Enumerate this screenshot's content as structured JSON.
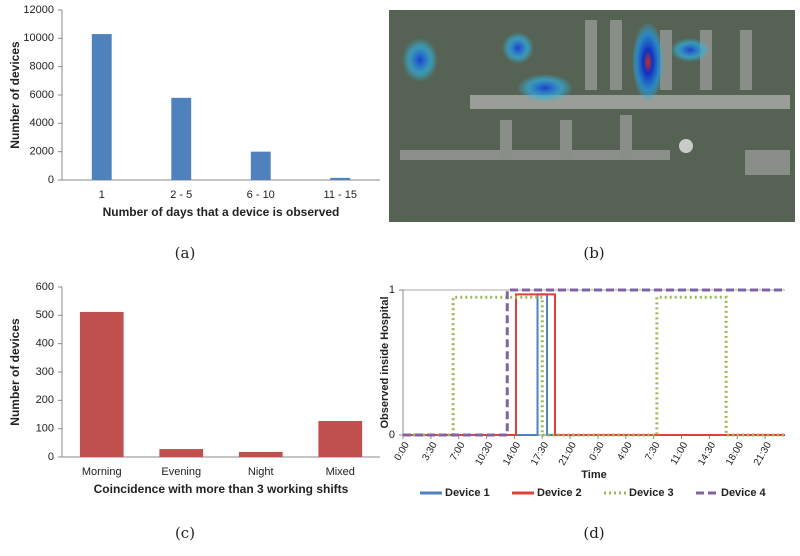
{
  "captions": [
    "(a)",
    "(b)",
    "(c)",
    "(d)"
  ],
  "chart_data": [
    {
      "type": "bar",
      "categories": [
        "1",
        "2 - 5",
        "6 - 10",
        "11 - 15"
      ],
      "values": [
        10300,
        5800,
        2000,
        150
      ],
      "color": "#4f81bd",
      "ylim": [
        0,
        12000
      ],
      "yticks": [
        0,
        2000,
        4000,
        6000,
        8000,
        10000,
        12000
      ],
      "y_label": "Number of devices",
      "x_label": "Number of days that a device is observed",
      "grid": false
    },
    {
      "type": "bar",
      "categories": [
        "Morning",
        "Evening",
        "Night",
        "Mixed"
      ],
      "values": [
        512,
        28,
        18,
        127
      ],
      "color": "#c0504d",
      "ylim": [
        0,
        600
      ],
      "yticks": [
        0,
        100,
        200,
        300,
        400,
        500,
        600
      ],
      "y_label": "Number of devices",
      "x_label": "Coincidence with more than 3 working shifts",
      "grid": false
    },
    {
      "type": "line",
      "x_label": "Time",
      "y_label": "Observed inside Hospital",
      "xlim": [
        0,
        48
      ],
      "ylim": [
        0,
        1
      ],
      "yticks": [
        0,
        1
      ],
      "grid": true,
      "legend": "bottom",
      "xticks": [
        {
          "value": 0,
          "label": "0:00"
        },
        {
          "value": 3.5,
          "label": "3:30"
        },
        {
          "value": 7,
          "label": "7:00"
        },
        {
          "value": 10.5,
          "label": "10:30"
        },
        {
          "value": 14,
          "label": "14:00"
        },
        {
          "value": 17.5,
          "label": "17:30"
        },
        {
          "value": 21,
          "label": "21:00"
        },
        {
          "value": 24.5,
          "label": "0:30"
        },
        {
          "value": 28,
          "label": "4:00"
        },
        {
          "value": 31.5,
          "label": "7:30"
        },
        {
          "value": 35,
          "label": "11:00"
        },
        {
          "value": 38.5,
          "label": "14:30"
        },
        {
          "value": 42,
          "label": "18:00"
        },
        {
          "value": 45.5,
          "label": "21:30"
        }
      ],
      "series": [
        {
          "name": "Device 1",
          "color": "#4f81bd",
          "dash": "solid",
          "x": [
            0,
            16.9,
            16.9,
            18.1,
            18.1,
            48
          ],
          "values": [
            0,
            0,
            0.97,
            0.97,
            0,
            0
          ]
        },
        {
          "name": "Device 2",
          "color": "#e0403a",
          "dash": "solid",
          "x": [
            0,
            14.2,
            14.2,
            19.1,
            19.1,
            48
          ],
          "values": [
            0,
            0,
            0.97,
            0.97,
            0,
            0
          ]
        },
        {
          "name": "Device 3",
          "color": "#9bbb59",
          "dash": "dotted",
          "x": [
            0,
            6.3,
            6.3,
            17.5,
            17.5,
            31.9,
            31.9,
            40.6,
            40.6,
            48
          ],
          "values": [
            0,
            0,
            0.95,
            0.95,
            0,
            0,
            0.95,
            0.95,
            0,
            0
          ]
        },
        {
          "name": "Device 4",
          "color": "#8064a2",
          "dash": "dashed",
          "x": [
            0,
            13.1,
            13.1,
            48
          ],
          "values": [
            0,
            0,
            1,
            1
          ]
        }
      ]
    }
  ]
}
